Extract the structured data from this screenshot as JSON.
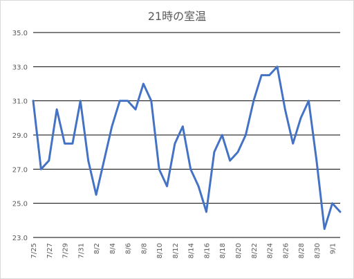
{
  "chart_data": {
    "type": "line",
    "title": "21時の室温",
    "xlabel": "",
    "ylabel": "",
    "ylim": [
      23.0,
      35.0
    ],
    "y_ticks": [
      "23.0",
      "25.0",
      "27.0",
      "29.0",
      "31.0",
      "33.0",
      "35.0"
    ],
    "x": [
      "7/25",
      "7/26",
      "7/27",
      "7/28",
      "7/29",
      "7/30",
      "7/31",
      "8/1",
      "8/2",
      "8/3",
      "8/4",
      "8/5",
      "8/6",
      "8/7",
      "8/8",
      "8/9",
      "8/10",
      "8/11",
      "8/12",
      "8/13",
      "8/14",
      "8/15",
      "8/16",
      "8/17",
      "8/18",
      "8/19",
      "8/20",
      "8/21",
      "8/22",
      "8/23",
      "8/24",
      "8/25",
      "8/26",
      "8/27",
      "8/28",
      "8/29",
      "8/30",
      "8/31",
      "9/1",
      "9/2"
    ],
    "x_tick_labels": [
      "7/25",
      "7/27",
      "7/29",
      "7/31",
      "8/2",
      "8/4",
      "8/6",
      "8/8",
      "8/10",
      "8/12",
      "8/14",
      "8/16",
      "8/18",
      "8/20",
      "8/22",
      "8/24",
      "8/26",
      "8/28",
      "8/30",
      "9/1"
    ],
    "series": [
      {
        "values": [
          31.0,
          27.0,
          27.5,
          30.5,
          28.5,
          28.5,
          31.0,
          27.5,
          25.5,
          27.5,
          29.5,
          31.0,
          31.0,
          30.5,
          32.0,
          31.0,
          27.0,
          26.0,
          28.5,
          29.5,
          27.0,
          26.0,
          24.5,
          28.0,
          29.0,
          27.5,
          28.0,
          29.0,
          31.0,
          32.5,
          32.5,
          33.0,
          30.5,
          28.5,
          30.0,
          31.0,
          27.5,
          23.5,
          25.0,
          24.5
        ],
        "color": "#4472c4"
      }
    ],
    "grid": true,
    "legend": "none"
  }
}
